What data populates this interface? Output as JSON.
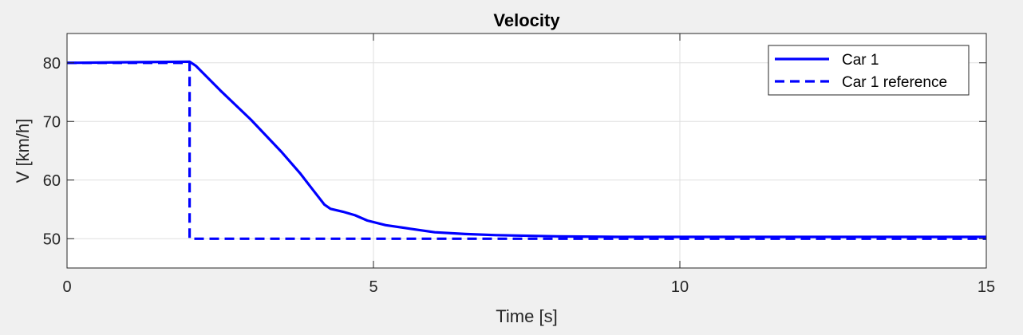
{
  "chart_data": {
    "type": "line",
    "title": "Velocity",
    "xlabel": "Time [s]",
    "ylabel": "V [km/h]",
    "xlim": [
      0,
      15
    ],
    "ylim": [
      45,
      85
    ],
    "xticks": [
      0,
      5,
      10,
      15
    ],
    "yticks": [
      50,
      60,
      70,
      80
    ],
    "grid": true,
    "legend_position": "top-right",
    "series": [
      {
        "name": "Car 1",
        "style": "solid",
        "color": "#0000ff",
        "x": [
          0,
          1,
          2,
          2.1,
          2.5,
          3.0,
          3.5,
          3.8,
          4.0,
          4.2,
          4.3,
          4.5,
          4.7,
          4.9,
          5.2,
          5.6,
          6.0,
          6.5,
          7.0,
          8.0,
          9.0,
          10.0,
          12.0,
          15.0
        ],
        "y": [
          80.0,
          80.1,
          80.2,
          79.5,
          75.3,
          70.3,
          64.8,
          61.2,
          58.5,
          55.8,
          55.1,
          54.6,
          54.0,
          53.1,
          52.3,
          51.7,
          51.1,
          50.8,
          50.6,
          50.4,
          50.3,
          50.3,
          50.3,
          50.3
        ]
      },
      {
        "name": "Car 1 reference",
        "style": "dashed",
        "color": "#0000ff",
        "x": [
          0,
          2,
          2,
          15
        ],
        "y": [
          80,
          80,
          50,
          50
        ]
      }
    ]
  }
}
